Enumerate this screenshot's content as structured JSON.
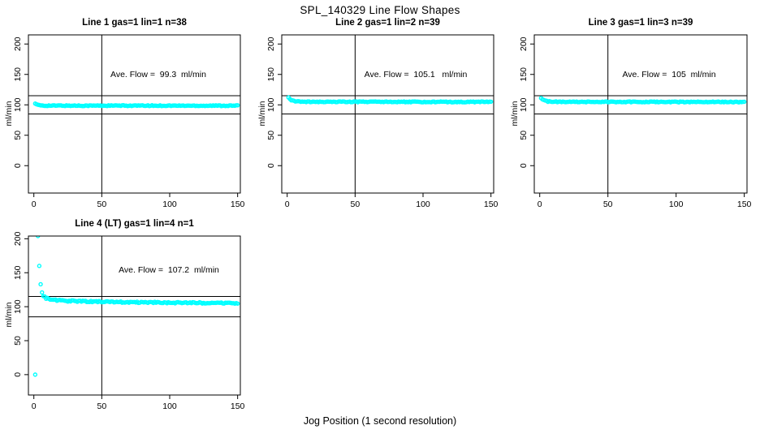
{
  "figure": {
    "title": "SPL_140329  Line Flow Shapes",
    "xlabel": "Jog Position (1 second resolution)",
    "colors": {
      "points": "#00ffff",
      "axis": "#000000",
      "background": "#ffffff"
    }
  },
  "chart_data": [
    {
      "type": "scatter",
      "title": "Line 1 gas=1 lin=1 n=38",
      "annotation": "Ave. Flow =  99.3  ml/min",
      "ave_flow_ml_min": 99.3,
      "ylabel": "ml/min",
      "x_ticks": [
        0,
        50,
        100,
        150
      ],
      "y_ticks": [
        0,
        50,
        100,
        150,
        200
      ],
      "xlim": [
        -4,
        152
      ],
      "ylim": [
        -45,
        215
      ],
      "vline_x": 50,
      "hlines_y": [
        115,
        85
      ],
      "marker": "open-circle",
      "x_range": [
        1,
        150
      ],
      "x_step": 1,
      "shape_anchors": [
        [
          1,
          102.3
        ],
        [
          2,
          100.5
        ],
        [
          4,
          99.2
        ],
        [
          8,
          98.7
        ],
        [
          150,
          98.6
        ]
      ],
      "outliers": [],
      "noise": 0.7
    },
    {
      "type": "scatter",
      "title": "Line 2 gas=1 lin=2 n=39",
      "annotation": "Ave. Flow =  105.1   ml/min",
      "ave_flow_ml_min": 105.1,
      "ylabel": "ml/min",
      "x_ticks": [
        0,
        50,
        100,
        150
      ],
      "y_ticks": [
        0,
        50,
        100,
        150,
        200
      ],
      "xlim": [
        -4,
        152
      ],
      "ylim": [
        -45,
        215
      ],
      "vline_x": 50,
      "hlines_y": [
        115,
        85
      ],
      "marker": "open-circle",
      "x_range": [
        1,
        150
      ],
      "x_step": 1,
      "shape_anchors": [
        [
          1,
          111.5
        ],
        [
          3,
          108
        ],
        [
          6,
          105.8
        ],
        [
          12,
          105.0
        ],
        [
          150,
          104.8
        ]
      ],
      "outliers": [],
      "noise": 0.7
    },
    {
      "type": "scatter",
      "title": "Line 3 gas=1 lin=3 n=39",
      "annotation": "Ave. Flow =  105  ml/min",
      "ave_flow_ml_min": 105,
      "ylabel": "ml/min",
      "x_ticks": [
        0,
        50,
        100,
        150
      ],
      "y_ticks": [
        0,
        50,
        100,
        150,
        200
      ],
      "xlim": [
        -4,
        152
      ],
      "ylim": [
        -45,
        215
      ],
      "vline_x": 50,
      "hlines_y": [
        115,
        85
      ],
      "marker": "open-circle",
      "x_range": [
        1,
        150
      ],
      "x_step": 1,
      "shape_anchors": [
        [
          1,
          110.5
        ],
        [
          3,
          107.5
        ],
        [
          6,
          105.6
        ],
        [
          12,
          105.0
        ],
        [
          150,
          104.7
        ]
      ],
      "outliers": [],
      "noise": 0.7
    },
    {
      "type": "scatter",
      "title": "Line 4 (LT) gas=1 lin=4 n=1",
      "annotation": "Ave. Flow =  107.2  ml/min",
      "ave_flow_ml_min": 107.2,
      "ylabel": "ml/min",
      "x_ticks": [
        0,
        50,
        100,
        150
      ],
      "y_ticks": [
        0,
        50,
        100,
        150,
        200
      ],
      "xlim": [
        -4,
        152
      ],
      "ylim": [
        -30,
        204
      ],
      "vline_x": 50,
      "hlines_y": [
        115,
        85
      ],
      "marker": "open-circle",
      "x_range": [
        7,
        150
      ],
      "x_step": 1,
      "shape_anchors": [
        [
          7,
          115.5
        ],
        [
          9,
          112.5
        ],
        [
          14,
          110
        ],
        [
          25,
          108.5
        ],
        [
          50,
          107.2
        ],
        [
          100,
          106
        ],
        [
          150,
          105.2
        ]
      ],
      "outliers": [
        [
          1,
          0
        ],
        [
          3,
          204
        ],
        [
          4,
          160
        ],
        [
          5,
          133
        ],
        [
          6,
          121
        ]
      ],
      "noise": 1.0
    }
  ]
}
